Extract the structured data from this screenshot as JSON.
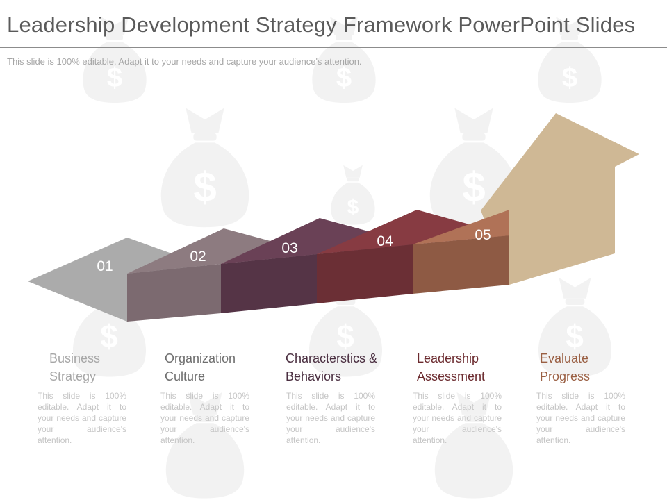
{
  "slide": {
    "title": "Leadership Development Strategy Framework PowerPoint Slides",
    "subtitle": "This slide is 100% editable. Adapt it to your needs and capture your audience's attention."
  },
  "colors": {
    "step1": "#ababab",
    "step2": "#8d7b80",
    "step3": "#6a4156",
    "step4": "#873b42",
    "step5": "#b07257",
    "arrow": "#cfb895",
    "watermark": "#f2f2f2"
  },
  "steps": [
    {
      "number": "01",
      "label": "Business Strategy",
      "label_color": "#a6a6a6",
      "description": "This slide is 100% editable. Adapt it to your needs and capture your audience's attention."
    },
    {
      "number": "02",
      "label": "Organization Culture",
      "label_color": "#6e6e6e",
      "description": "This slide is 100% editable. Adapt it to your needs and capture your audience's attention."
    },
    {
      "number": "03",
      "label": "Characterstics & Behaviors",
      "label_color": "#4a2e40",
      "description": "This slide is 100% editable. Adapt it to your needs and capture your audience's attention."
    },
    {
      "number": "04",
      "label": "Leadership Assessment",
      "label_color": "#6b2a2e",
      "description": "This slide is 100% editable. Adapt it to your needs and capture your audience's attention."
    },
    {
      "number": "05",
      "label": "Evaluate Progress",
      "label_color": "#9a5f43",
      "description": "This slide is 100% editable. Adapt it to your needs and capture your audience's attention."
    }
  ]
}
